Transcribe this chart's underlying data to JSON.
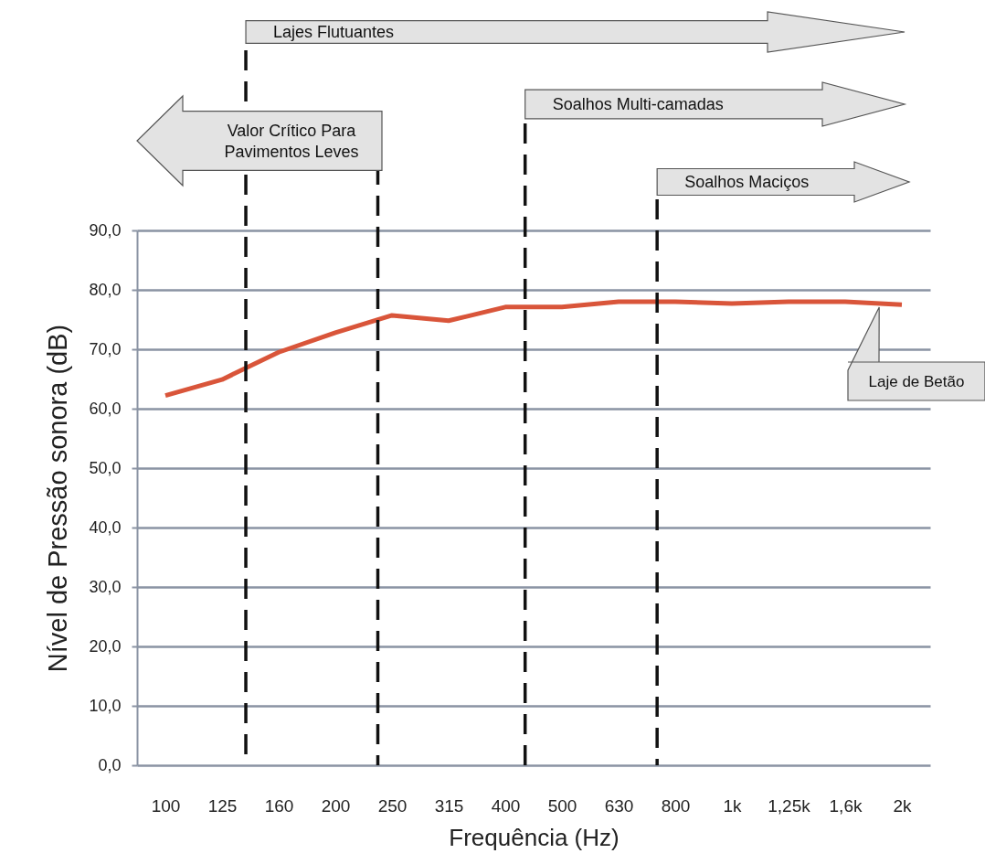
{
  "chart_data": {
    "type": "line",
    "xlabel": "Frequência (Hz)",
    "ylabel": "Nível de Pressão sonora (dB)",
    "categories": [
      "100",
      "125",
      "160",
      "200",
      "250",
      "315",
      "400",
      "500",
      "630",
      "800",
      "1k",
      "1,25k",
      "1,6k",
      "2k"
    ],
    "series": [
      {
        "name": "Laje de Betão",
        "color": "#d9553a",
        "values": [
          62.2,
          64.9,
          69.5,
          72.8,
          75.7,
          74.8,
          77.1,
          77.1,
          78,
          78,
          77.7,
          78,
          78,
          77.5
        ]
      }
    ],
    "ylim": [
      0,
      90
    ],
    "yticks": [
      {
        "value": 0,
        "label": "0,0"
      },
      {
        "value": 10,
        "label": "10,0"
      },
      {
        "value": 20,
        "label": "20,0"
      },
      {
        "value": 30,
        "label": "30,0"
      },
      {
        "value": 40,
        "label": "40,0"
      },
      {
        "value": 50,
        "label": "50,0"
      },
      {
        "value": 60,
        "label": "60,0"
      },
      {
        "value": 70,
        "label": "70,0"
      },
      {
        "value": 80,
        "label": "80,0"
      },
      {
        "value": 90,
        "label": "90,0"
      }
    ],
    "grid": "y",
    "marker": "none",
    "line_style": "solid",
    "annotations": [
      "Lajes Flutuantes",
      "Valor Crítico Para Pavimentos Leves",
      "Soalhos Multi-camadas",
      "Soalhos Maciços"
    ]
  }
}
